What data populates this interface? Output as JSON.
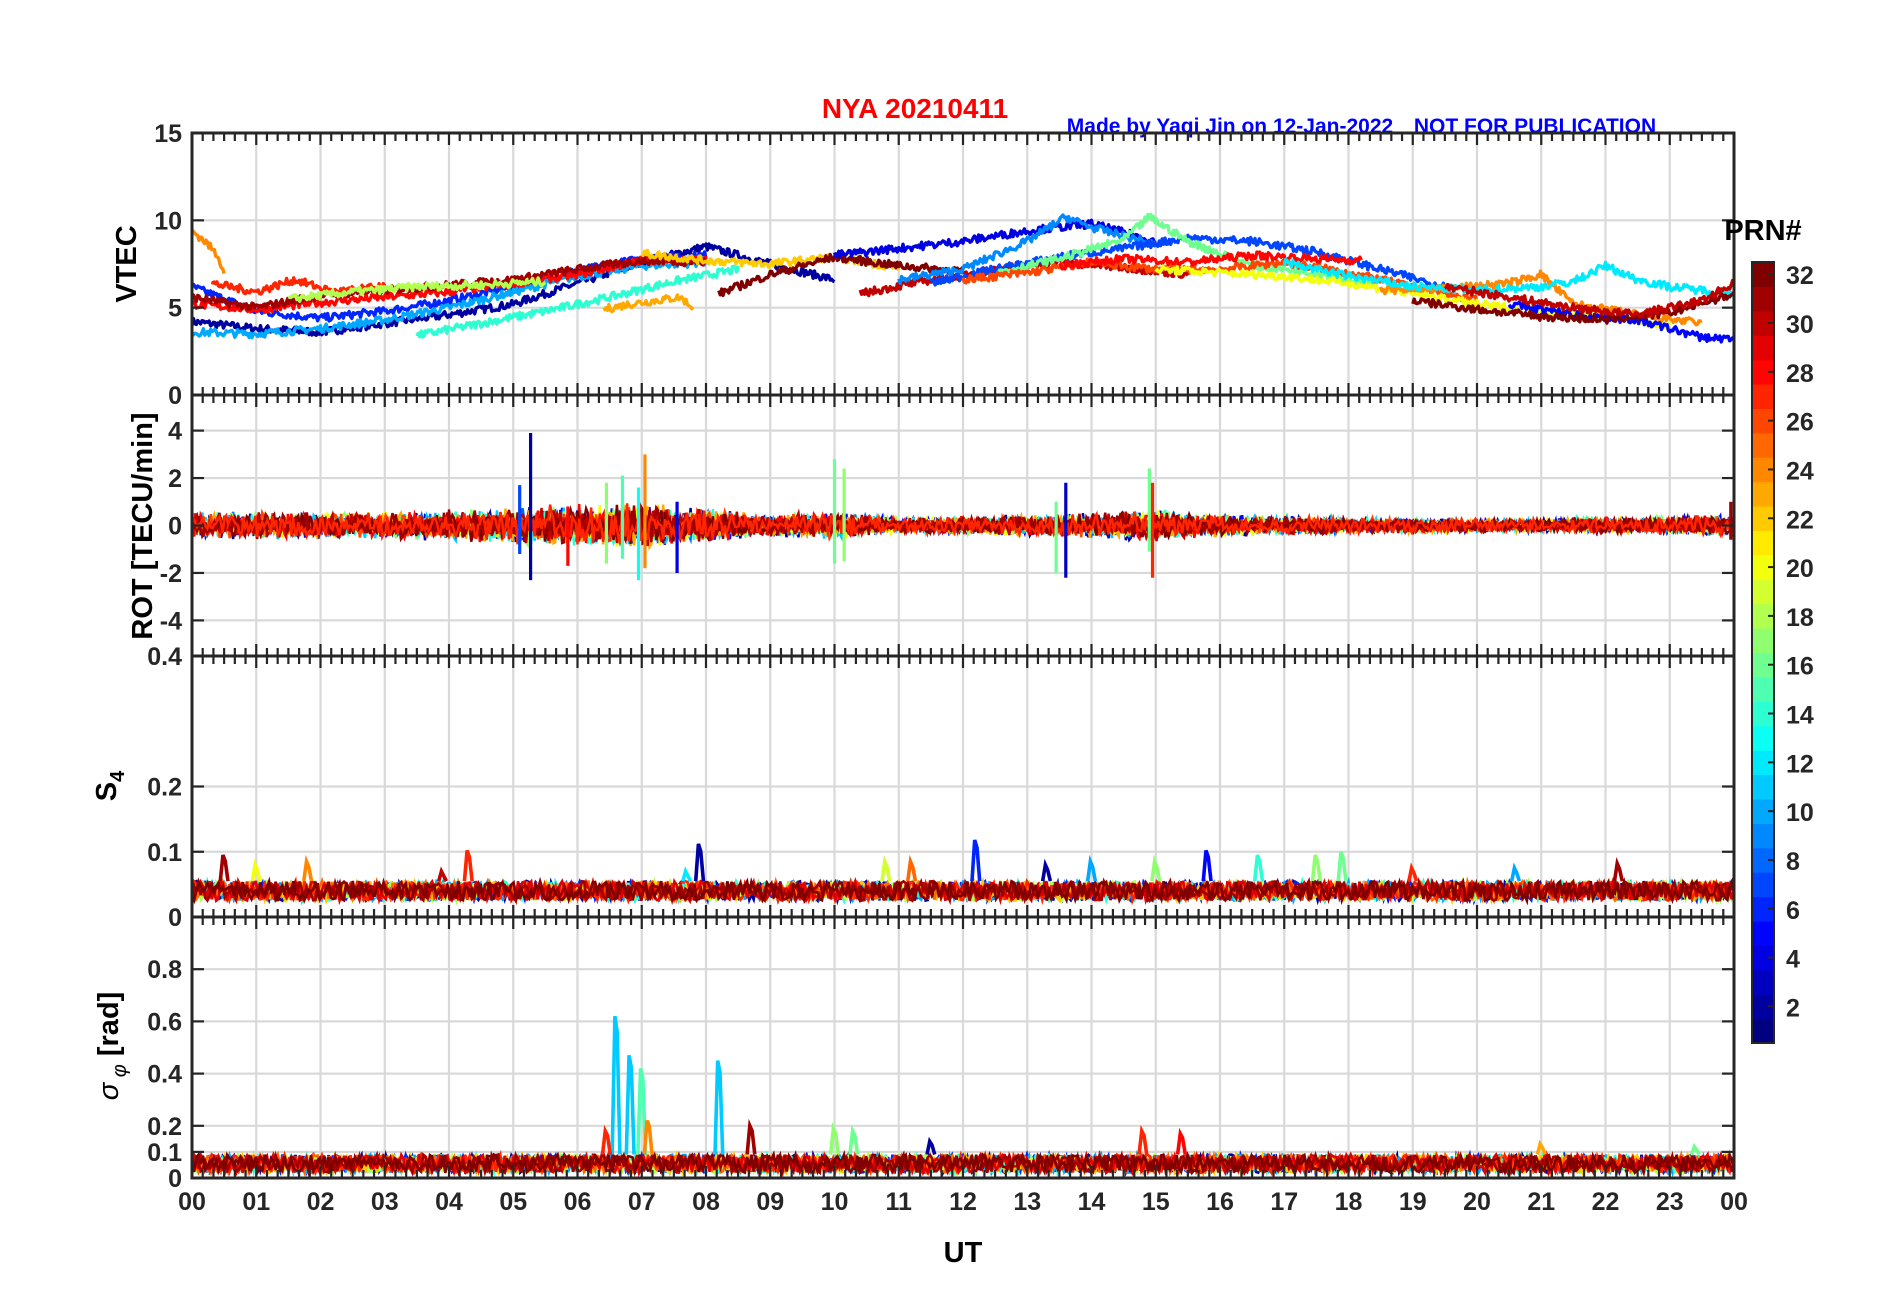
{
  "header": {
    "title": "NYA   20210411",
    "credit": "Made by Yaqi Jin on 12-Jan-2022",
    "notice": "NOT FOR PUBLICATION",
    "title_color": "#ff0000",
    "credit_color": "#0000ff"
  },
  "chart_data": [
    {
      "type": "line",
      "name": "vtec",
      "ylabel": "VTEC",
      "ylim": [
        0,
        15
      ],
      "yticks": [
        0,
        5,
        10,
        15
      ],
      "ytick_labels": [
        "0",
        "5",
        "10",
        "15"
      ],
      "grid": true,
      "series": [
        {
          "prn": 2,
          "x": [
            0,
            1,
            2,
            3,
            4,
            5,
            6,
            7,
            8,
            9,
            10
          ],
          "y": [
            4.2,
            3.8,
            3.6,
            4.1,
            4.6,
            5.2,
            6.4,
            7.6,
            8.5,
            7.5,
            6.6
          ]
        },
        {
          "prn": 6,
          "x": [
            0,
            1,
            2,
            3,
            4,
            5,
            6,
            7,
            8
          ],
          "y": [
            6.2,
            4.8,
            4.4,
            4.8,
            5.4,
            6.2,
            7.1,
            7.8,
            8.0
          ]
        },
        {
          "prn": 10,
          "x": [
            0,
            1,
            2,
            3,
            4,
            5,
            6,
            7,
            8
          ],
          "y": [
            3.6,
            3.5,
            3.8,
            4.3,
            5.0,
            5.9,
            6.8,
            7.4,
            7.6
          ]
        },
        {
          "prn": 14,
          "x": [
            3.5,
            4.5,
            5.5,
            6.5,
            7.5,
            8.5
          ],
          "y": [
            3.4,
            4.1,
            4.8,
            5.6,
            6.5,
            7.2
          ]
        },
        {
          "prn": 23,
          "x": [
            6.4,
            6.8,
            7.2,
            7.6,
            7.8
          ],
          "y": [
            4.9,
            5.2,
            5.4,
            5.6,
            5.0
          ]
        },
        {
          "prn": 28,
          "x": [
            0,
            1,
            2,
            3,
            4,
            5,
            6,
            7,
            8
          ],
          "y": [
            5.2,
            4.9,
            5.3,
            5.6,
            5.9,
            6.4,
            6.9,
            7.7,
            7.8
          ]
        },
        {
          "prn": 31,
          "x": [
            0,
            1,
            2,
            3,
            4,
            5,
            6,
            7,
            8
          ],
          "y": [
            5.6,
            5.0,
            5.7,
            6.0,
            6.3,
            6.6,
            7.2,
            7.7,
            7.6
          ]
        },
        {
          "prn": 24,
          "x": [
            0.0,
            0.2,
            0.4,
            0.5
          ],
          "y": [
            9.4,
            8.8,
            8.0,
            7.1
          ]
        },
        {
          "prn": 27,
          "x": [
            0.3,
            1.0,
            1.6,
            2.2,
            3.0
          ],
          "y": [
            6.4,
            5.9,
            6.6,
            5.9,
            6.2
          ]
        },
        {
          "prn": 18,
          "x": [
            1.5,
            2.5,
            3.5,
            4.5,
            5.5
          ],
          "y": [
            5.5,
            5.9,
            6.2,
            6.3,
            6.5
          ]
        },
        {
          "prn": 22,
          "x": [
            7.0,
            8.0,
            9.0,
            10.0,
            11.0
          ],
          "y": [
            8.1,
            7.7,
            7.5,
            7.9,
            7.3
          ]
        },
        {
          "prn": 32,
          "x": [
            8.2,
            9.0,
            10.0,
            11.0,
            12.0
          ],
          "y": [
            5.8,
            6.9,
            7.9,
            7.4,
            7.1
          ]
        },
        {
          "prn": 30,
          "x": [
            10.4,
            11.5,
            12.5,
            13.5,
            14.5,
            15.5
          ],
          "y": [
            5.8,
            6.6,
            7.2,
            7.6,
            7.3,
            6.9
          ]
        },
        {
          "prn": 4,
          "x": [
            10,
            11,
            12,
            13,
            14,
            15
          ],
          "y": [
            8.0,
            8.4,
            8.8,
            9.4,
            9.8,
            8.8
          ]
        },
        {
          "prn": 9,
          "x": [
            11,
            12,
            13,
            13.6,
            14,
            15
          ],
          "y": [
            6.6,
            7.2,
            8.8,
            10.2,
            9.6,
            8.6
          ]
        },
        {
          "prn": 7,
          "x": [
            11.5,
            12.5,
            13.5,
            14.5,
            15.5,
            16.5,
            17.5,
            18.5,
            19.5
          ],
          "y": [
            6.4,
            7.2,
            7.9,
            8.4,
            9.0,
            8.8,
            8.2,
            7.2,
            6.2
          ]
        },
        {
          "prn": 16,
          "x": [
            12.5,
            13.5,
            14.5,
            14.9,
            15.5,
            16.5,
            17.5,
            18.5
          ],
          "y": [
            7.0,
            7.8,
            8.9,
            10.2,
            8.8,
            7.4,
            7.0,
            6.2
          ]
        },
        {
          "prn": 26,
          "x": [
            12,
            13,
            14,
            15,
            16,
            17,
            18,
            19,
            20
          ],
          "y": [
            6.6,
            7.0,
            7.6,
            7.2,
            7.2,
            7.6,
            7.0,
            6.2,
            5.4
          ]
        },
        {
          "prn": 28,
          "x": [
            13.5,
            14.5,
            15.5,
            16.5,
            17.5,
            18.2
          ],
          "y": [
            7.4,
            7.8,
            7.6,
            8.0,
            7.8,
            7.7
          ]
        },
        {
          "prn": 20,
          "x": [
            15,
            16,
            17,
            18,
            19,
            20,
            21,
            22,
            23
          ],
          "y": [
            7.2,
            7.0,
            6.8,
            6.4,
            5.8,
            5.2,
            4.8,
            4.5,
            4.0
          ]
        },
        {
          "prn": 24,
          "x": [
            18.5,
            19.5,
            20.5,
            21.0,
            21.5,
            22.5,
            23.5
          ],
          "y": [
            6.0,
            6.1,
            6.4,
            6.9,
            5.2,
            4.6,
            4.1
          ]
        },
        {
          "prn": 12,
          "x": [
            17,
            18,
            19,
            20,
            21,
            21.5,
            22,
            22.5,
            23,
            24
          ],
          "y": [
            7.6,
            6.8,
            6.2,
            6.0,
            6.2,
            6.5,
            7.4,
            6.6,
            6.2,
            5.8
          ]
        },
        {
          "prn": 5,
          "x": [
            20.5,
            21.5,
            22.5,
            23.5,
            24
          ],
          "y": [
            5.2,
            4.6,
            4.3,
            3.3,
            3.2
          ]
        },
        {
          "prn": 32,
          "x": [
            19,
            20,
            21,
            22,
            23,
            24
          ],
          "y": [
            5.4,
            4.9,
            4.5,
            4.3,
            4.7,
            5.8
          ]
        },
        {
          "prn": 30,
          "x": [
            19.5,
            20.5,
            21.5,
            22.5,
            23.5,
            24
          ],
          "y": [
            6.2,
            5.6,
            5.0,
            4.6,
            5.4,
            6.4
          ]
        }
      ]
    },
    {
      "type": "line",
      "name": "rot",
      "ylabel": "ROT [TECU/min]",
      "ylim": [
        -5.5,
        5.5
      ],
      "yticks": [
        -4,
        -2,
        0,
        2,
        4
      ],
      "ytick_labels": [
        "-4",
        "-2",
        "0",
        "2",
        "4"
      ],
      "grid": true,
      "noise_envelope": {
        "x": [
          0,
          3,
          5,
          6,
          7,
          8,
          9,
          10,
          11,
          13,
          14,
          15,
          16,
          18,
          20,
          22,
          24
        ],
        "amp": [
          0.5,
          0.5,
          0.7,
          0.8,
          0.9,
          0.6,
          0.4,
          0.5,
          0.3,
          0.4,
          0.5,
          0.6,
          0.4,
          0.3,
          0.25,
          0.3,
          0.4
        ]
      },
      "spikes": [
        {
          "x": 5.27,
          "y0": -2.3,
          "y1": 3.9,
          "prn": 2
        },
        {
          "x": 5.1,
          "y0": -1.2,
          "y1": 1.7,
          "prn": 7
        },
        {
          "x": 5.85,
          "y0": -1.7,
          "y1": 0.8,
          "prn": 28
        },
        {
          "x": 6.45,
          "y0": -1.6,
          "y1": 1.8,
          "prn": 17
        },
        {
          "x": 6.7,
          "y0": -1.4,
          "y1": 2.1,
          "prn": 15
        },
        {
          "x": 6.95,
          "y0": -2.3,
          "y1": 1.6,
          "prn": 13
        },
        {
          "x": 7.05,
          "y0": -1.8,
          "y1": 3.0,
          "prn": 24
        },
        {
          "x": 7.55,
          "y0": -2.0,
          "y1": 1.0,
          "prn": 4
        },
        {
          "x": 10.0,
          "y0": -1.6,
          "y1": 2.8,
          "prn": 16
        },
        {
          "x": 10.15,
          "y0": -1.5,
          "y1": 2.4,
          "prn": 17
        },
        {
          "x": 13.6,
          "y0": -2.2,
          "y1": 1.8,
          "prn": 3
        },
        {
          "x": 13.45,
          "y0": -2.0,
          "y1": 1.0,
          "prn": 16
        },
        {
          "x": 14.9,
          "y0": -1.1,
          "y1": 2.4,
          "prn": 16
        },
        {
          "x": 14.95,
          "y0": -2.2,
          "y1": 1.8,
          "prn": 27
        },
        {
          "x": 23.95,
          "y0": -0.6,
          "y1": 1.0,
          "prn": 31
        }
      ]
    },
    {
      "type": "line",
      "name": "s4",
      "ylabel": "S4",
      "ylim": [
        0,
        0.4
      ],
      "yticks": [
        0,
        0.1,
        0.2,
        0.4
      ],
      "ytick_labels": [
        "0",
        "0.1",
        "0.2",
        "0.4"
      ],
      "grid": true,
      "baseline": [
        0.025,
        0.055
      ],
      "spikes": [
        {
          "x": 0.5,
          "y": 0.095,
          "prn": 31
        },
        {
          "x": 1.0,
          "y": 0.08,
          "prn": 20
        },
        {
          "x": 1.8,
          "y": 0.085,
          "prn": 24
        },
        {
          "x": 4.3,
          "y": 0.102,
          "prn": 27
        },
        {
          "x": 3.9,
          "y": 0.07,
          "prn": 30
        },
        {
          "x": 7.9,
          "y": 0.112,
          "prn": 2
        },
        {
          "x": 7.7,
          "y": 0.07,
          "prn": 12
        },
        {
          "x": 10.8,
          "y": 0.085,
          "prn": 19
        },
        {
          "x": 11.2,
          "y": 0.085,
          "prn": 25
        },
        {
          "x": 12.2,
          "y": 0.118,
          "prn": 6
        },
        {
          "x": 13.3,
          "y": 0.08,
          "prn": 2
        },
        {
          "x": 14.0,
          "y": 0.085,
          "prn": 10
        },
        {
          "x": 15.0,
          "y": 0.085,
          "prn": 17
        },
        {
          "x": 15.8,
          "y": 0.102,
          "prn": 5
        },
        {
          "x": 16.6,
          "y": 0.095,
          "prn": 14
        },
        {
          "x": 17.5,
          "y": 0.095,
          "prn": 17
        },
        {
          "x": 17.9,
          "y": 0.1,
          "prn": 16
        },
        {
          "x": 19.0,
          "y": 0.075,
          "prn": 27
        },
        {
          "x": 20.6,
          "y": 0.075,
          "prn": 10
        },
        {
          "x": 22.2,
          "y": 0.082,
          "prn": 31
        }
      ]
    },
    {
      "type": "line",
      "name": "sigma_phi",
      "ylabel": "σ φ [rad]",
      "ylim": [
        0,
        1
      ],
      "yticks": [
        0,
        0.1,
        0.2,
        0.4,
        0.6,
        0.8
      ],
      "ytick_labels": [
        "0",
        "0.1",
        "0.2",
        "0.4",
        "0.6",
        "0.8"
      ],
      "grid": true,
      "baseline": [
        0.02,
        0.09
      ],
      "spikes": [
        {
          "x": 6.6,
          "y": 0.62,
          "prn": 11
        },
        {
          "x": 6.82,
          "y": 0.47,
          "prn": 11
        },
        {
          "x": 7.0,
          "y": 0.42,
          "prn": 15
        },
        {
          "x": 8.2,
          "y": 0.45,
          "prn": 11
        },
        {
          "x": 6.45,
          "y": 0.18,
          "prn": 27
        },
        {
          "x": 7.1,
          "y": 0.22,
          "prn": 24
        },
        {
          "x": 8.7,
          "y": 0.2,
          "prn": 31
        },
        {
          "x": 10.0,
          "y": 0.19,
          "prn": 17
        },
        {
          "x": 10.3,
          "y": 0.18,
          "prn": 16
        },
        {
          "x": 11.5,
          "y": 0.14,
          "prn": 2
        },
        {
          "x": 14.8,
          "y": 0.18,
          "prn": 27
        },
        {
          "x": 15.4,
          "y": 0.17,
          "prn": 28
        },
        {
          "x": 21.0,
          "y": 0.13,
          "prn": 23
        },
        {
          "x": 23.4,
          "y": 0.12,
          "prn": 16
        }
      ]
    }
  ],
  "x_axis": {
    "label": "UT",
    "xlim": [
      0,
      24
    ],
    "tick_labels": [
      "00",
      "01",
      "02",
      "03",
      "04",
      "05",
      "06",
      "07",
      "08",
      "09",
      "10",
      "11",
      "12",
      "13",
      "14",
      "15",
      "16",
      "17",
      "18",
      "19",
      "20",
      "21",
      "22",
      "23",
      "00"
    ]
  },
  "colorbar": {
    "title": "PRN#",
    "range": [
      1,
      32
    ],
    "colormap": "jet",
    "ticks": [
      2,
      4,
      6,
      8,
      10,
      12,
      14,
      16,
      18,
      20,
      22,
      24,
      26,
      28,
      30,
      32
    ],
    "tick_labels": [
      "2",
      "4",
      "6",
      "8",
      "10",
      "12",
      "14",
      "16",
      "18",
      "20",
      "22",
      "24",
      "26",
      "28",
      "30",
      "32"
    ]
  }
}
